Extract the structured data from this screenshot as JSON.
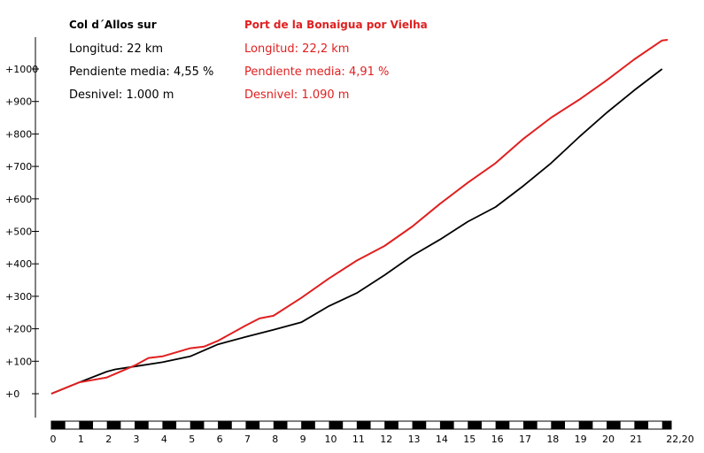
{
  "chart_data": {
    "type": "line",
    "title": "",
    "xlabel": "",
    "ylabel": "",
    "xlim": [
      0,
      22.2
    ],
    "ylim": [
      0,
      1100
    ],
    "y_ticks": [
      0,
      100,
      200,
      300,
      400,
      500,
      600,
      700,
      800,
      900,
      1000
    ],
    "y_tick_labels": [
      "+0",
      "+100",
      "+200",
      "+300",
      "+400",
      "+500",
      "+600",
      "+700",
      "+800",
      "+900",
      "+1000"
    ],
    "x_ticks": [
      0,
      1,
      2,
      3,
      4,
      5,
      6,
      7,
      8,
      9,
      10,
      11,
      12,
      13,
      14,
      15,
      16,
      17,
      18,
      19,
      20,
      21,
      22.2
    ],
    "x_tick_labels": [
      "0",
      "1",
      "2",
      "3",
      "4",
      "5",
      "6",
      "7",
      "8",
      "9",
      "10",
      "11",
      "12",
      "13",
      "14",
      "15",
      "16",
      "17",
      "18",
      "19",
      "20",
      "21",
      "22,20"
    ],
    "grid": false,
    "series": [
      {
        "name": "Col d´Allos sur",
        "color": "#000000",
        "x": [
          0,
          1,
          2,
          2.3,
          3,
          4,
          5,
          6,
          7,
          8,
          9,
          10,
          11,
          12,
          13,
          14,
          15,
          16,
          17,
          18,
          19,
          20,
          21,
          22
        ],
        "y": [
          0,
          35,
          68,
          75,
          84,
          97,
          115,
          152,
          175,
          197,
          220,
          270,
          310,
          365,
          425,
          475,
          530,
          575,
          640,
          710,
          790,
          865,
          935,
          1000
        ]
      },
      {
        "name": "Port de la Bonaigua por Vielha",
        "color": "#e02020",
        "x": [
          0,
          1,
          2,
          3,
          3.5,
          4,
          5,
          5.5,
          6,
          7,
          7.5,
          8,
          9,
          10,
          11,
          12,
          13,
          14,
          15,
          16,
          17,
          18,
          19,
          20,
          21,
          22,
          22.2
        ],
        "y": [
          0,
          35,
          50,
          87,
          110,
          115,
          140,
          145,
          163,
          210,
          232,
          240,
          295,
          355,
          410,
          455,
          515,
          585,
          650,
          710,
          785,
          850,
          905,
          965,
          1030,
          1088,
          1090
        ]
      }
    ]
  },
  "stats": [
    {
      "title": "Col d´Allos sur",
      "length": "Longitud:  22 km",
      "gradient": "Pendiente media:  4,55 %",
      "elevation": "Desnivel:  1.000 m"
    },
    {
      "title": "Port de la Bonaigua por Vielha",
      "length": "Longitud:  22,2 km",
      "gradient": "Pendiente media:  4,91 %",
      "elevation": "Desnivel:  1.090 m"
    }
  ]
}
